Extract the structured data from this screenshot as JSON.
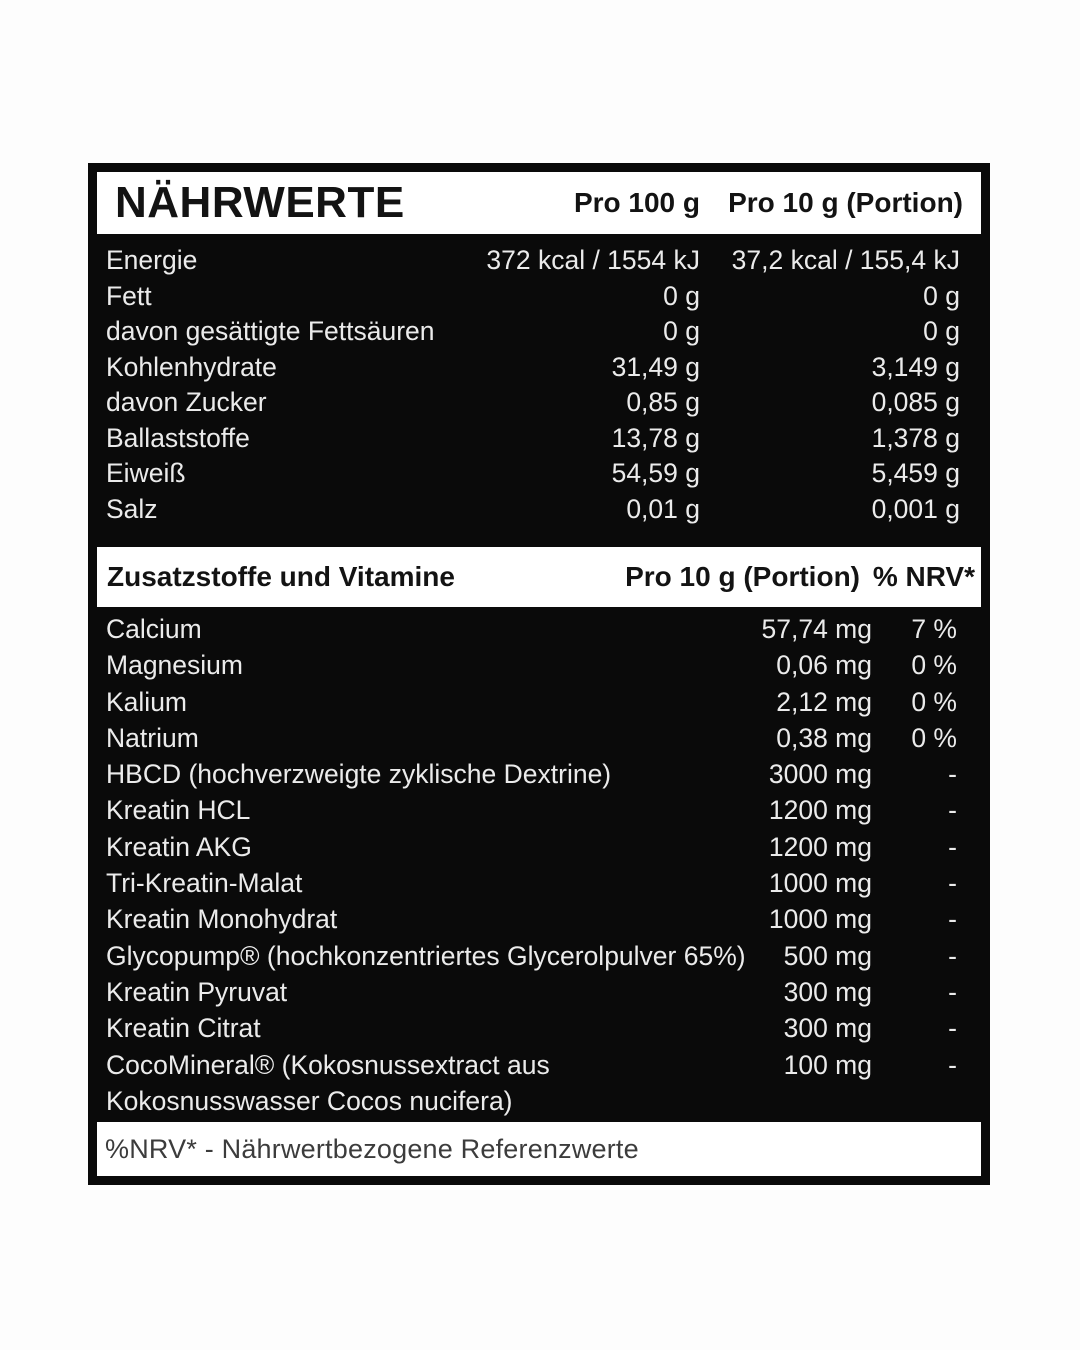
{
  "colors": {
    "page_background": "#fdfdfd",
    "card_background": "#0a0a0a",
    "band_background": "#ffffff",
    "row_text": "#ebebeb",
    "band_text": "#131313"
  },
  "header": {
    "title": "NÄHRWERTE",
    "col_per_100g": "Pro 100 g",
    "col_per_10g": "Pro 10 g (Portion)"
  },
  "nutrition": {
    "rows": [
      {
        "label": "Energie",
        "per100": "372 kcal / 1554 kJ",
        "per10": "37,2 kcal / 155,4 kJ"
      },
      {
        "label": "Fett",
        "per100": "0 g",
        "per10": "0 g"
      },
      {
        "label": "davon gesättigte Fettsäuren",
        "per100": "0 g",
        "per10": "0 g"
      },
      {
        "label": "Kohlenhydrate",
        "per100": "31,49 g",
        "per10": "3,149 g"
      },
      {
        "label": "davon Zucker",
        "per100": "0,85 g",
        "per10": "0,085 g"
      },
      {
        "label": "Ballaststoffe",
        "per100": "13,78 g",
        "per10": "1,378 g"
      },
      {
        "label": "Eiweiß",
        "per100": "54,59 g",
        "per10": "5,459 g"
      },
      {
        "label": "Salz",
        "per100": "0,01 g",
        "per10": "0,001 g"
      }
    ]
  },
  "additives": {
    "title": "Zusatzstoffe und Vitamine",
    "col_per_10g": "Pro 10 g (Portion)",
    "col_nrv": "% NRV*",
    "rows": [
      {
        "label": "Calcium",
        "amount": "57,74 mg",
        "nrv": "7 %"
      },
      {
        "label": "Magnesium",
        "amount": "0,06 mg",
        "nrv": "0 %"
      },
      {
        "label": "Kalium",
        "amount": "2,12 mg",
        "nrv": "0 %"
      },
      {
        "label": "Natrium",
        "amount": "0,38 mg",
        "nrv": "0 %"
      },
      {
        "label": "HBCD (hochverzweigte zyklische Dextrine)",
        "amount": "3000 mg",
        "nrv": "-"
      },
      {
        "label": "Kreatin HCL",
        "amount": "1200 mg",
        "nrv": "-"
      },
      {
        "label": "Kreatin AKG",
        "amount": "1200 mg",
        "nrv": "-"
      },
      {
        "label": "Tri-Kreatin-Malat",
        "amount": "1000 mg",
        "nrv": "-"
      },
      {
        "label": "Kreatin Monohydrat",
        "amount": "1000 mg",
        "nrv": "-"
      },
      {
        "label": "Glycopump® (hochkonzentriertes Glycerolpulver 65%)",
        "amount": "500 mg",
        "nrv": "-"
      },
      {
        "label": "Kreatin Pyruvat",
        "amount": "300 mg",
        "nrv": "-"
      },
      {
        "label": "Kreatin Citrat",
        "amount": "300 mg",
        "nrv": "-"
      },
      {
        "label": "CocoMineral® (Kokosnussextract aus",
        "amount": "100 mg",
        "nrv": "-"
      },
      {
        "label": "Kokosnusswasser Cocos nucifera)",
        "amount": "",
        "nrv": ""
      }
    ]
  },
  "footer": {
    "note": "%NRV* - Nährwertbezogene Referenzwerte"
  }
}
